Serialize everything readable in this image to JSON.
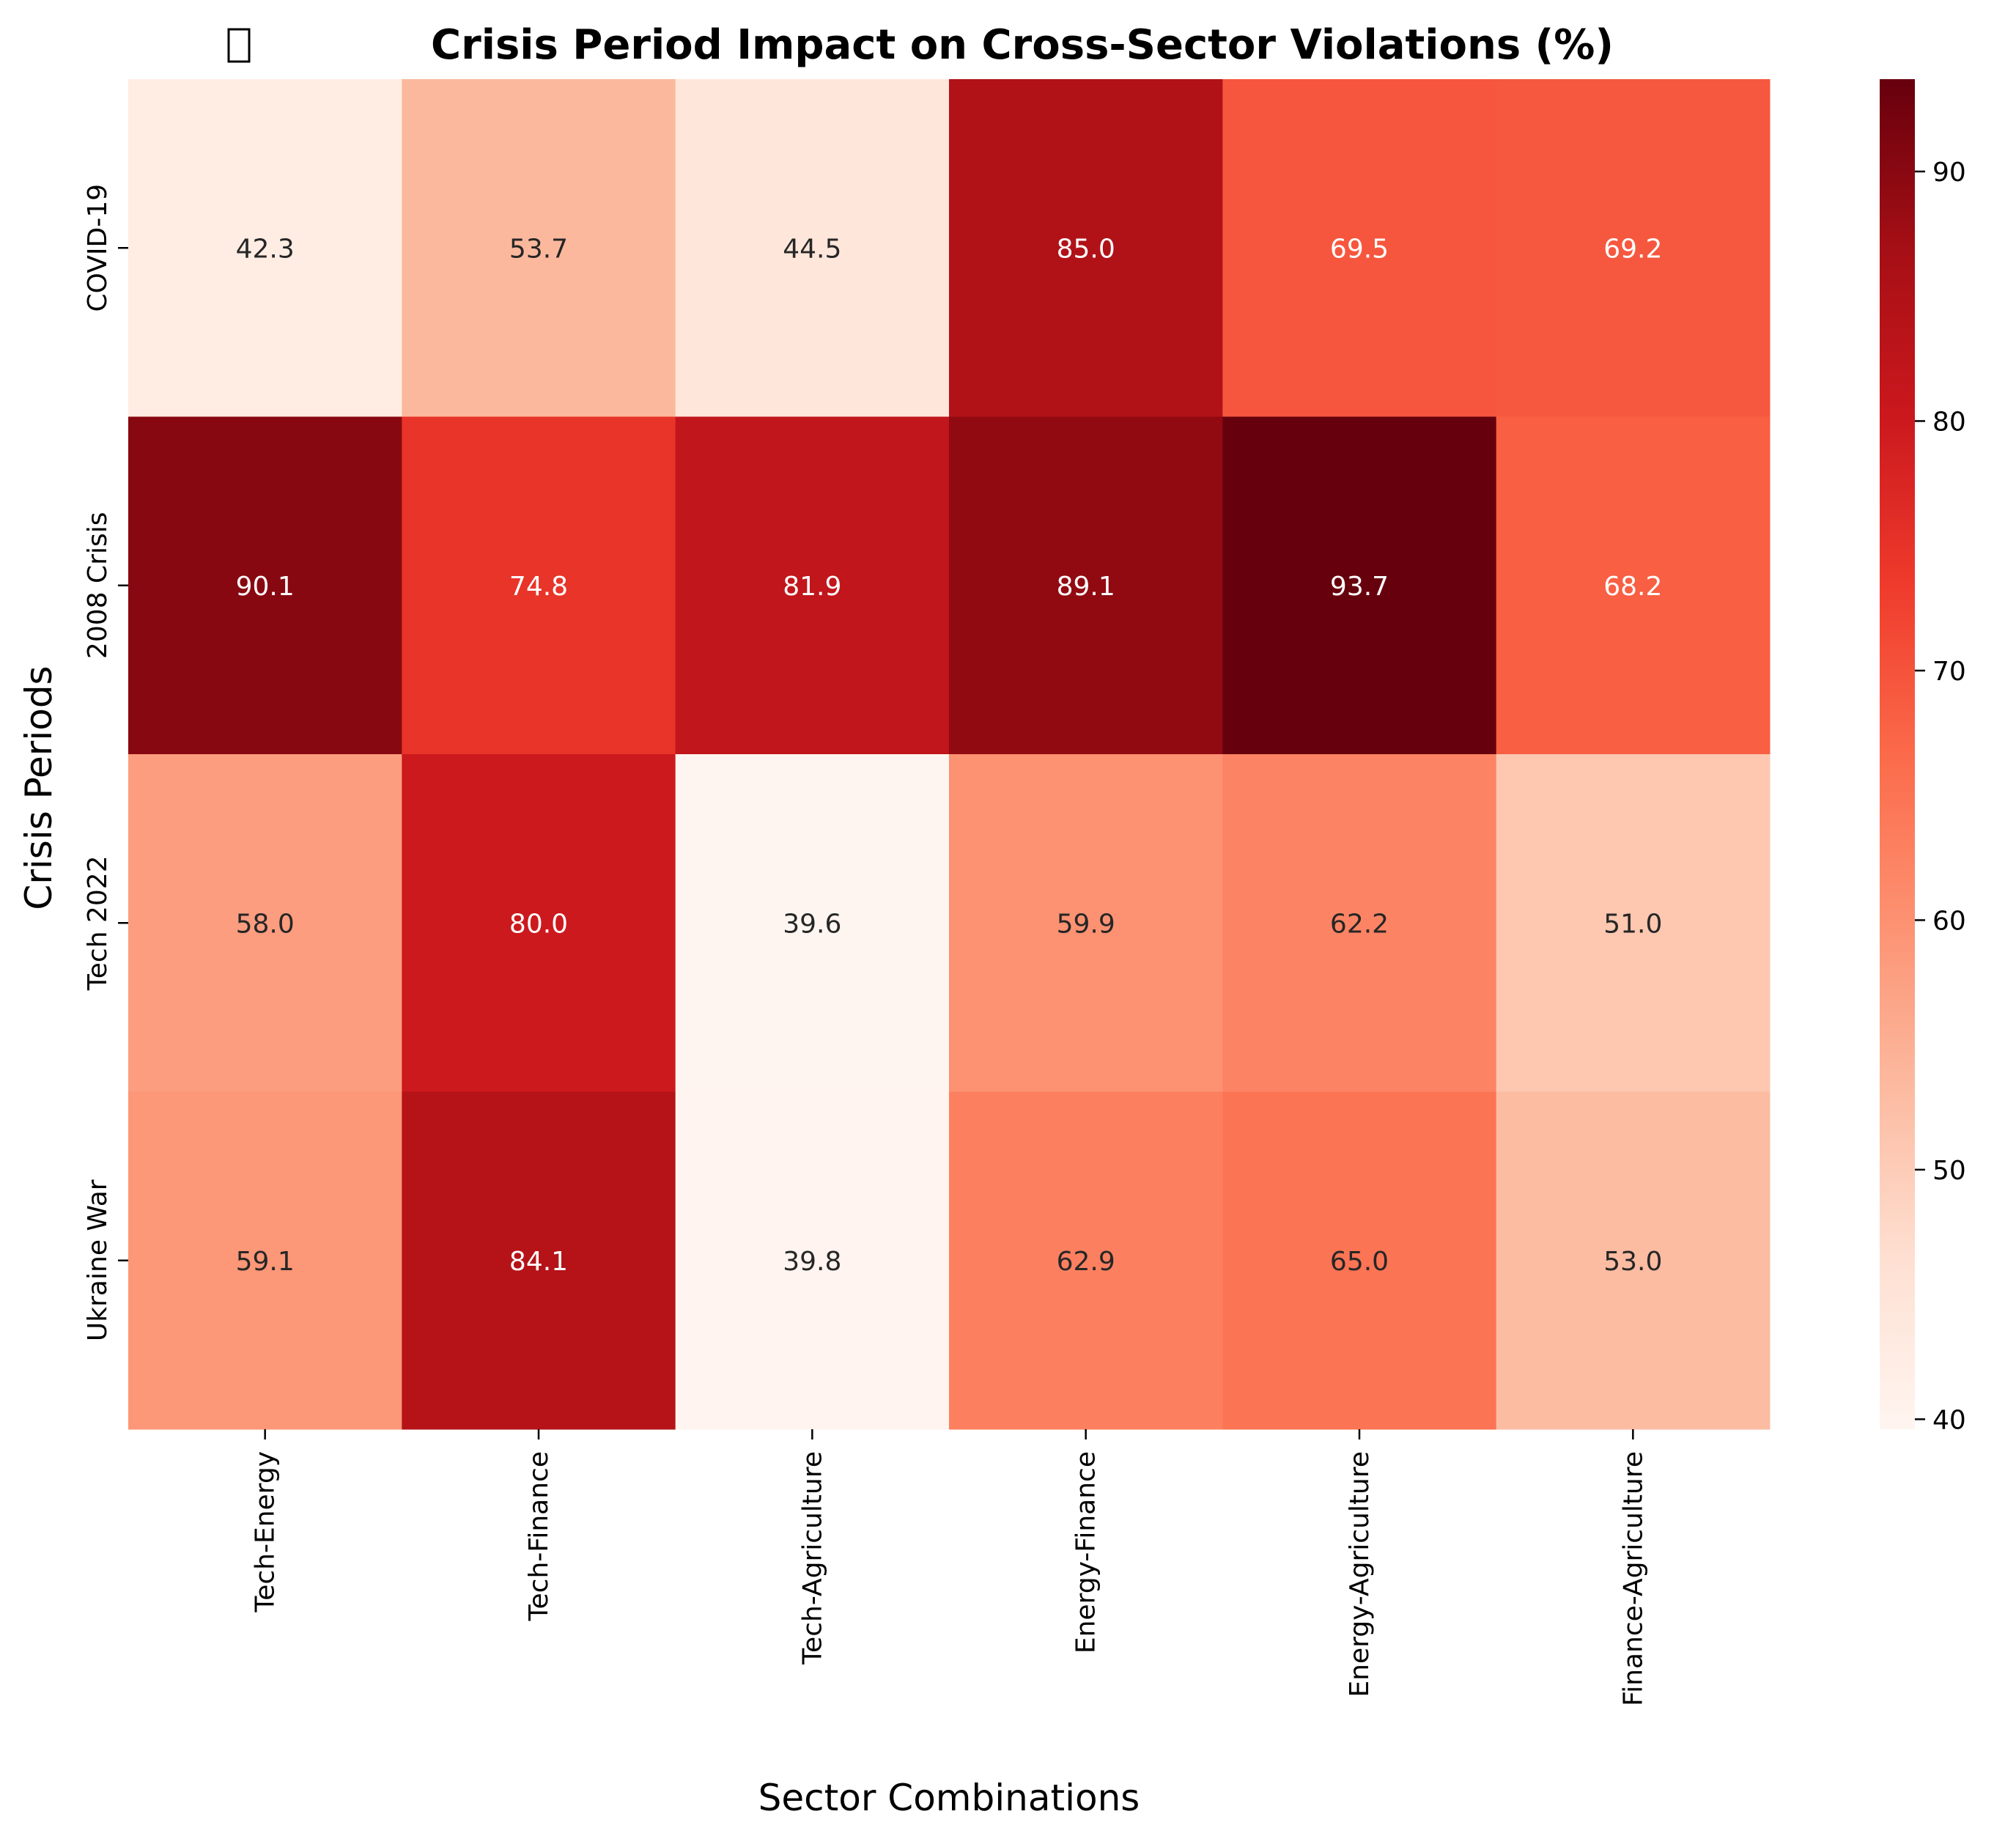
{
  "chart_data": {
    "type": "heatmap",
    "title": "Crisis Period Impact on Cross-Sector Violations (%)",
    "title_icon": "missing-glyph-box",
    "xlabel": "Sector Combinations",
    "ylabel": "Crisis Periods",
    "x_categories": [
      "Tech-Energy",
      "Tech-Finance",
      "Tech-Agriculture",
      "Energy-Finance",
      "Energy-Agriculture",
      "Finance-Agriculture"
    ],
    "y_categories": [
      "COVID-19",
      "2008 Crisis",
      "Tech 2022",
      "Ukraine War"
    ],
    "values": [
      [
        42.3,
        53.7,
        44.5,
        85.0,
        69.5,
        69.2
      ],
      [
        90.1,
        74.8,
        81.9,
        89.1,
        93.7,
        68.2
      ],
      [
        58.0,
        80.0,
        39.6,
        59.9,
        62.2,
        51.0
      ],
      [
        59.1,
        84.1,
        39.8,
        62.9,
        65.0,
        53.0
      ]
    ],
    "colormap": "Reds",
    "colorbar_range": [
      39.6,
      93.7
    ],
    "colorbar_ticks": [
      40,
      50,
      60,
      70,
      80,
      90
    ],
    "grid": false,
    "legend": "colorbar-right"
  }
}
